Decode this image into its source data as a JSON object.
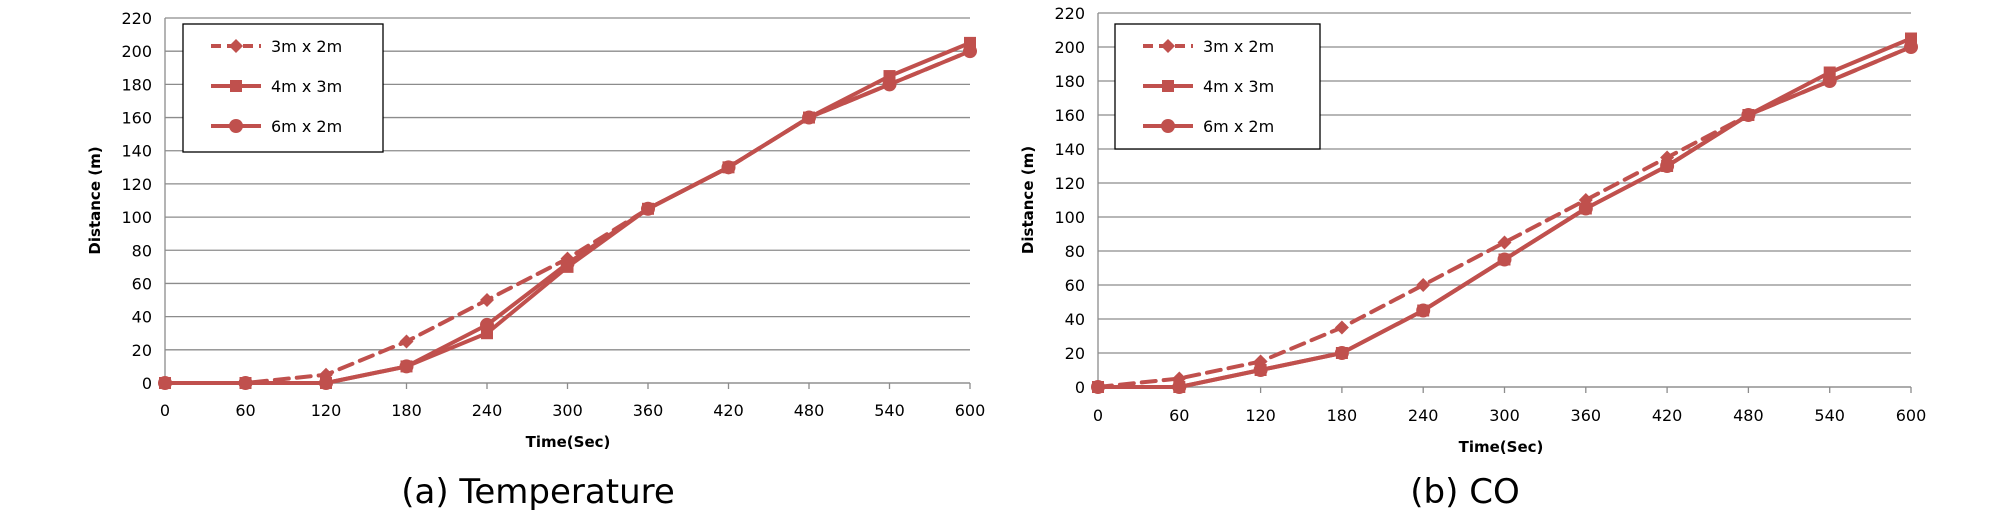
{
  "chart_data": [
    {
      "type": "line",
      "caption": "(a) Temperature",
      "xlabel": "Time(Sec)",
      "ylabel": "Distance (m)",
      "x": [
        0,
        60,
        120,
        180,
        240,
        300,
        360,
        420,
        480,
        540,
        600
      ],
      "xlim": [
        0,
        600
      ],
      "ylim": [
        0,
        220
      ],
      "yticks": [
        0,
        20,
        40,
        60,
        80,
        100,
        120,
        140,
        160,
        180,
        200,
        220
      ],
      "grid": true,
      "legend_position": "top-left",
      "color": "#c0504d",
      "series": [
        {
          "name": "3m x 2m",
          "marker": "diamond",
          "dashed": true,
          "values": [
            0,
            0,
            5,
            25,
            50,
            75,
            105,
            130,
            160,
            180,
            200
          ]
        },
        {
          "name": "4m x 3m",
          "marker": "square",
          "dashed": false,
          "values": [
            0,
            0,
            0,
            10,
            30,
            70,
            105,
            130,
            160,
            185,
            205
          ]
        },
        {
          "name": "6m x 2m",
          "marker": "circle",
          "dashed": false,
          "values": [
            0,
            0,
            0,
            10,
            35,
            72,
            105,
            130,
            160,
            180,
            200
          ]
        }
      ]
    },
    {
      "type": "line",
      "caption": "(b) CO",
      "xlabel": "Time(Sec)",
      "ylabel": "Distance (m)",
      "x": [
        0,
        60,
        120,
        180,
        240,
        300,
        360,
        420,
        480,
        540,
        600
      ],
      "xlim": [
        0,
        600
      ],
      "ylim": [
        0,
        220
      ],
      "yticks": [
        0,
        20,
        40,
        60,
        80,
        100,
        120,
        140,
        160,
        180,
        200,
        220
      ],
      "grid": true,
      "legend_position": "top-left",
      "color": "#c0504d",
      "series": [
        {
          "name": "3m x 2m",
          "marker": "diamond",
          "dashed": true,
          "values": [
            0,
            5,
            15,
            35,
            60,
            85,
            110,
            135,
            160,
            180,
            200
          ]
        },
        {
          "name": "4m x 3m",
          "marker": "square",
          "dashed": false,
          "values": [
            0,
            0,
            10,
            20,
            45,
            75,
            105,
            130,
            160,
            185,
            205
          ]
        },
        {
          "name": "6m x 2m",
          "marker": "circle",
          "dashed": false,
          "values": [
            0,
            0,
            10,
            20,
            45,
            75,
            105,
            130,
            160,
            180,
            200
          ]
        }
      ]
    }
  ]
}
